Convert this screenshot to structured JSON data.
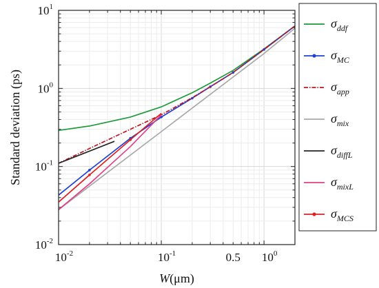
{
  "chart_data": {
    "type": "line",
    "xscale": "log",
    "yscale": "log",
    "xlim": [
      0.01,
      2.0
    ],
    "ylim": [
      0.01,
      10
    ],
    "grid": true,
    "xlabel": {
      "main": "W",
      "unit": "(μm)"
    },
    "ylabel": "Standard deviation (ps)",
    "x_ticks": [
      {
        "value": 0.01,
        "base": "10",
        "exp": "-2"
      },
      {
        "value": 0.1,
        "base": "10",
        "exp": "-1"
      },
      {
        "value": 0.5,
        "base": "0.5",
        "exp": ""
      },
      {
        "value": 1,
        "base": "10",
        "exp": "0"
      }
    ],
    "y_ticks": [
      {
        "value": 0.01,
        "base": "10",
        "exp": "-2"
      },
      {
        "value": 0.1,
        "base": "10",
        "exp": "-1"
      },
      {
        "value": 1,
        "base": "10",
        "exp": "0"
      },
      {
        "value": 10,
        "base": "10",
        "exp": "1"
      }
    ],
    "legend_position": "right-outside",
    "series": [
      {
        "name": "σ",
        "sub": "ddf",
        "color": "#1a9a3a",
        "style": "solid",
        "x": [
          0.01,
          0.02,
          0.05,
          0.1,
          0.2,
          0.3,
          0.5,
          1.0,
          2.0
        ],
        "y": [
          0.29,
          0.33,
          0.43,
          0.58,
          0.88,
          1.17,
          1.7,
          3.2,
          6.3
        ]
      },
      {
        "name": "σ",
        "sub": "MC",
        "color": "#1f3fd6",
        "style": "solid-dot",
        "x": [
          0.01,
          0.02,
          0.05,
          0.1,
          0.2,
          0.3,
          0.5,
          1.0,
          2.0
        ],
        "y": [
          0.043,
          0.09,
          0.23,
          0.43,
          0.75,
          1.05,
          1.6,
          3.15,
          6.3
        ]
      },
      {
        "name": "σ",
        "sub": "app",
        "color": "#c0141e",
        "style": "dashdot",
        "x": [
          0.01,
          0.02,
          0.05,
          0.1,
          0.2,
          0.3,
          0.5,
          1.0,
          2.0
        ],
        "y": [
          0.11,
          0.17,
          0.3,
          0.46,
          0.76,
          1.05,
          1.6,
          3.15,
          6.3
        ]
      },
      {
        "name": "σ",
        "sub": "mix",
        "color": "#a8a8a8",
        "style": "solid",
        "x": [
          0.01,
          0.1,
          1.0,
          2.0
        ],
        "y": [
          0.028,
          0.28,
          2.8,
          5.9
        ]
      },
      {
        "name": "σ",
        "sub": "diffL",
        "color": "#222222",
        "style": "solid",
        "x": [
          0.01,
          0.035
        ],
        "y": [
          0.11,
          0.21
        ]
      },
      {
        "name": "σ",
        "sub": "mixL",
        "color": "#e0408a",
        "style": "solid",
        "x": [
          0.01,
          0.02,
          0.05,
          0.1
        ],
        "y": [
          0.028,
          0.06,
          0.18,
          0.46
        ]
      },
      {
        "name": "σ",
        "sub": "MCS",
        "color": "#e02020",
        "style": "solid-dot",
        "x": [
          0.01,
          0.02,
          0.05,
          0.1
        ],
        "y": [
          0.035,
          0.078,
          0.22,
          0.48
        ]
      }
    ]
  }
}
